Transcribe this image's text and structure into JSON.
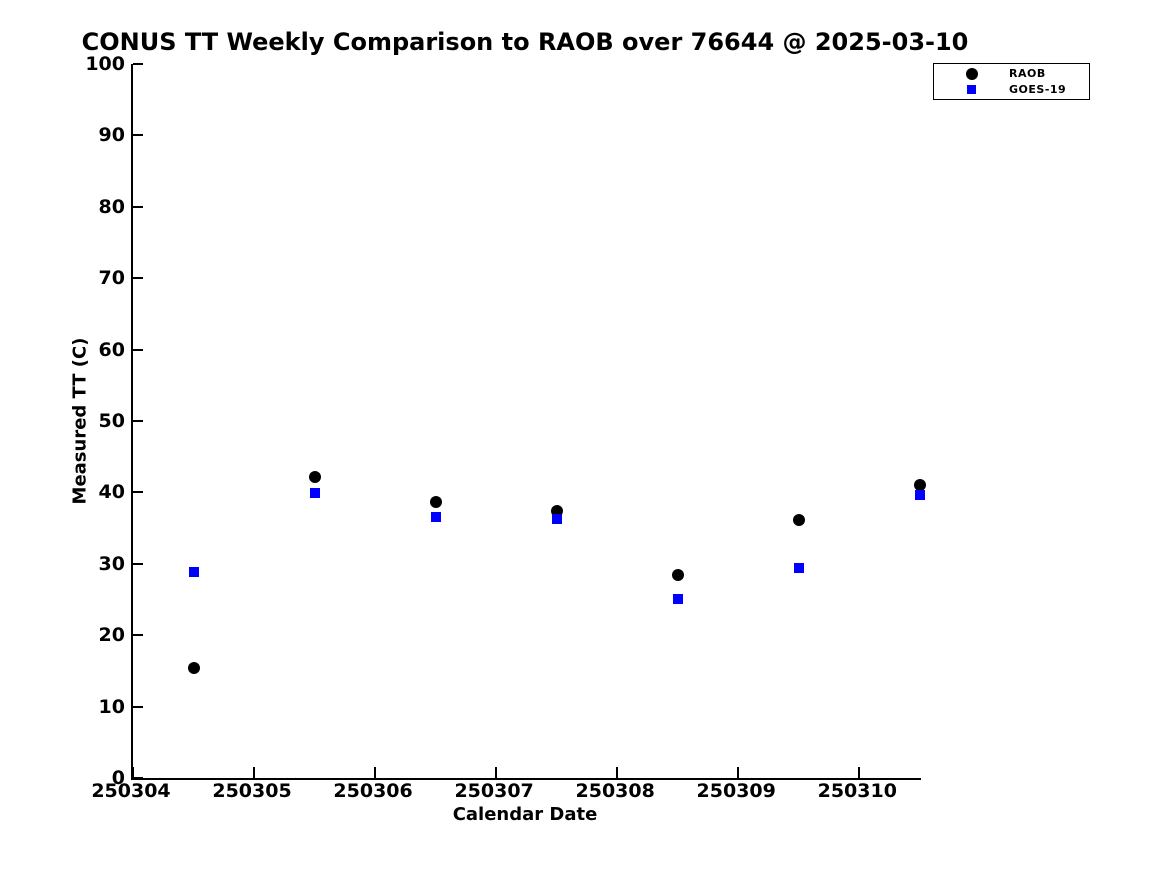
{
  "title": "CONUS TT Weekly Comparison to RAOB over 76644 @ 2025-03-10",
  "colors": {
    "background": "#ffffff",
    "axis": "#000000",
    "text": "#000000",
    "raob": "#000000",
    "goes19": "#0000ff"
  },
  "chart_data": {
    "type": "scatter",
    "title": "CONUS TT Weekly Comparison to RAOB over 76644 @ 2025-03-10",
    "xlabel": "Calendar Date",
    "ylabel": "Measured TT (C)",
    "xlim": [
      250304,
      250310.51
    ],
    "ylim": [
      0,
      100
    ],
    "x_ticks": [
      250304,
      250305,
      250306,
      250307,
      250308,
      250309,
      250310
    ],
    "y_ticks": [
      0,
      10,
      20,
      30,
      40,
      50,
      60,
      70,
      80,
      90,
      100
    ],
    "grid": false,
    "legend_position": "top-right",
    "series": [
      {
        "name": "RAOB",
        "marker": "circle",
        "color": "#000000",
        "x": [
          250304.5,
          250305.5,
          250306.5,
          250307.5,
          250308.5,
          250309.5,
          250310.5
        ],
        "y": [
          15.4,
          42.1,
          38.7,
          37.4,
          28.4,
          36.1,
          41.0
        ]
      },
      {
        "name": "GOES-19",
        "marker": "square",
        "color": "#0000ff",
        "x": [
          250304.5,
          250305.5,
          250306.5,
          250307.5,
          250308.5,
          250309.5,
          250310.5
        ],
        "y": [
          28.9,
          39.9,
          36.5,
          36.3,
          25.1,
          29.4,
          39.6
        ]
      }
    ]
  }
}
